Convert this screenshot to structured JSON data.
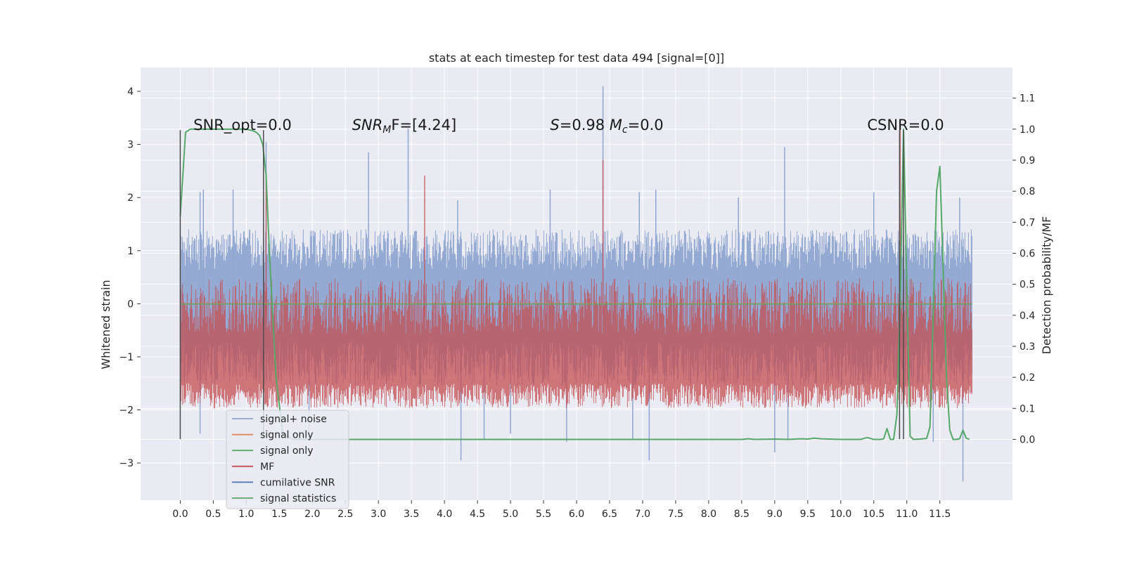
{
  "chart_data": {
    "type": "line",
    "title": "stats at each timestep for test data 494 [signal=[0]]",
    "xlabel": "",
    "ylabel": "Whitened strain",
    "y2label": "Detection probability/MF",
    "xlim": [
      -0.6,
      12.6
    ],
    "ylim": [
      -3.7,
      4.45
    ],
    "y2lim": [
      -0.196,
      1.199
    ],
    "xticks": [
      "0.0",
      "0.5",
      "1.0",
      "1.5",
      "2.0",
      "2.5",
      "3.0",
      "3.5",
      "4.0",
      "4.5",
      "5.0",
      "5.5",
      "6.0",
      "6.5",
      "7.0",
      "7.5",
      "8.0",
      "8.5",
      "9.0",
      "9.5",
      "10.0",
      "10.5",
      "11.0",
      "11.5"
    ],
    "yticks": [
      "4",
      "3",
      "2",
      "1",
      "0",
      "−1",
      "−2",
      "−3"
    ],
    "yticks_values": [
      4,
      3,
      2,
      1,
      0,
      -1,
      -2,
      -3
    ],
    "y2ticks": [
      "1.1",
      "1.0",
      "0.9",
      "0.8",
      "0.7",
      "0.6",
      "0.5",
      "0.4",
      "0.3",
      "0.2",
      "0.1",
      "0.0"
    ],
    "y2ticks_values": [
      1.1,
      1.0,
      0.9,
      0.8,
      0.7,
      0.6,
      0.5,
      0.4,
      0.3,
      0.2,
      0.1,
      0.0
    ],
    "grid": true,
    "legend_placement": "lower-left",
    "annotations": [
      {
        "text": "SNR_opt=0.0",
        "x": 0.2,
        "y": 3.27
      },
      {
        "text": "SNR",
        "sub": "M",
        "tail": "F=[4.24]",
        "x": 2.6,
        "y": 3.27
      },
      {
        "text": "S",
        "tail": "=0.98   ",
        "text2": "M",
        "sub2": "c",
        "tail2": "=0.0",
        "x": 5.6,
        "y": 3.27
      },
      {
        "text": "CSNR=0.0",
        "x": 10.4,
        "y": 3.27
      }
    ],
    "series": [
      {
        "name": "signal+ noise",
        "color": "#8fa6d1",
        "x_range": [
          0.0,
          11.99
        ],
        "envelope_upper": 1.4,
        "envelope_lower": -1.55,
        "spikes_up": [
          [
            0.3,
            2.1
          ],
          [
            0.35,
            2.15
          ],
          [
            0.8,
            2.15
          ],
          [
            1.3,
            3.05
          ],
          [
            2.85,
            2.85
          ],
          [
            3.45,
            3.3
          ],
          [
            4.2,
            1.95
          ],
          [
            5.6,
            2.15
          ],
          [
            6.4,
            4.1
          ],
          [
            6.95,
            2.1
          ],
          [
            7.2,
            2.15
          ],
          [
            8.45,
            2.0
          ],
          [
            9.15,
            2.95
          ],
          [
            10.5,
            2.1
          ],
          [
            11.8,
            2.0
          ]
        ],
        "spikes_down": [
          [
            0.3,
            -2.45
          ],
          [
            1.95,
            -2.55
          ],
          [
            4.25,
            -2.95
          ],
          [
            4.6,
            -2.55
          ],
          [
            5.0,
            -2.45
          ],
          [
            5.85,
            -2.6
          ],
          [
            6.85,
            -2.55
          ],
          [
            7.1,
            -2.95
          ],
          [
            9.0,
            -2.8
          ],
          [
            9.2,
            -2.55
          ],
          [
            11.4,
            -2.6
          ],
          [
            11.85,
            -3.35
          ]
        ]
      },
      {
        "name": "signal only",
        "color": "#dd8452",
        "values_desc": "flat at 0"
      },
      {
        "name": "signal only",
        "color": "#55a868",
        "values_desc": "flat at 0"
      },
      {
        "name": "MF",
        "color": "#c44e52",
        "x_range": [
          0.0,
          11.99
        ],
        "band": [
          0.12,
          0.52
        ],
        "spikes_up": [
          [
            1.3,
            0.85
          ],
          [
            3.7,
            0.85
          ],
          [
            6.4,
            0.9
          ],
          [
            10.9,
            1.0
          ]
        ],
        "axis": "right"
      },
      {
        "name": "cumilative SNR",
        "color": "#4c72b0",
        "values_desc": "not visible"
      },
      {
        "name": "signal statistics",
        "color": "#55a868",
        "axis": "right",
        "x": [
          0.0,
          0.08,
          0.15,
          0.3,
          0.5,
          0.8,
          1.0,
          1.1,
          1.15,
          1.2,
          1.25,
          1.3,
          1.35,
          1.45,
          1.55,
          1.7,
          2.0,
          3.0,
          5.0,
          7.0,
          8.0,
          8.5,
          8.6,
          8.7,
          9.0,
          9.2,
          9.4,
          9.5,
          9.6,
          9.7,
          10.0,
          10.3,
          10.4,
          10.5,
          10.6,
          10.65,
          10.7,
          10.75,
          10.8,
          10.85,
          10.9,
          10.95,
          11.0,
          11.05,
          11.1,
          11.2,
          11.3,
          11.35,
          11.4,
          11.45,
          11.5,
          11.55,
          11.6,
          11.65,
          11.7,
          11.75,
          11.8,
          11.85,
          11.9,
          11.95
        ],
        "y": [
          0.72,
          0.99,
          1.0,
          1.0,
          1.0,
          1.0,
          1.0,
          0.995,
          0.99,
          0.98,
          0.95,
          0.85,
          0.6,
          0.2,
          0.02,
          0.0,
          0.0,
          0.0,
          0.0,
          0.0,
          0.0,
          0.0,
          0.002,
          0.0,
          0.001,
          0.0,
          0.002,
          0.001,
          0.004,
          0.002,
          0.0,
          0.0,
          0.006,
          0.0,
          0.0,
          0.002,
          0.035,
          0.0,
          0.0,
          0.08,
          0.45,
          1.0,
          0.5,
          0.01,
          0.0,
          0.001,
          0.003,
          0.04,
          0.4,
          0.8,
          0.88,
          0.55,
          0.2,
          0.03,
          0.0,
          0.0,
          0.002,
          0.03,
          0.004,
          0.0
        ]
      }
    ],
    "vlines": [
      {
        "x": 0.0,
        "y_top": 3.27,
        "y_bottom": -2.55,
        "color": "#4d4d4d"
      },
      {
        "x": 1.26,
        "y_top": 3.27,
        "y_bottom": -2.55,
        "color": "#4d4d4d"
      },
      {
        "x": 10.89,
        "y_top": 3.27,
        "y_bottom": -2.55,
        "color": "#4d4d4d"
      },
      {
        "x": 10.95,
        "y_top": 3.27,
        "y_bottom": -2.55,
        "color": "#4d4d4d"
      }
    ],
    "legend": [
      {
        "label": "signal+ noise",
        "color": "#8fa6d1"
      },
      {
        "label": "signal only",
        "color": "#dd8452"
      },
      {
        "label": "signal only",
        "color": "#55a868"
      },
      {
        "label": "MF",
        "color": "#c44e52"
      },
      {
        "label": "cumilative SNR",
        "color": "#4c72b0"
      },
      {
        "label": "signal statistics",
        "color": "#55a868"
      }
    ],
    "colors": {
      "plot_bg": "#eaeaf2",
      "grid": "#ffffff"
    }
  }
}
